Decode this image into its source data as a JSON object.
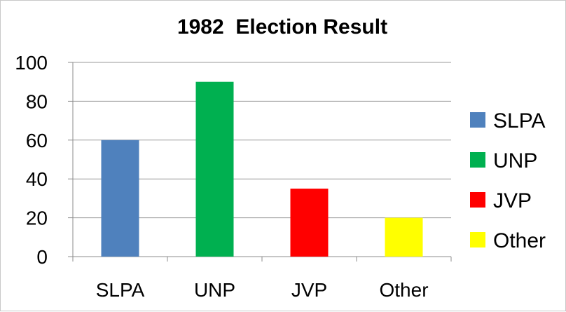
{
  "chart_data": {
    "type": "bar",
    "title": "1982  Election Result",
    "categories": [
      "SLPA",
      "UNP",
      "JVP",
      "Other"
    ],
    "values": [
      60,
      90,
      35,
      20
    ],
    "colors": [
      "#4f81bd",
      "#00b050",
      "#ff0000",
      "#ffff00"
    ],
    "xlabel": "",
    "ylabel": "",
    "ylim": [
      0,
      100
    ],
    "yticks": [
      0,
      20,
      40,
      60,
      80,
      100
    ],
    "grid": "horizontal",
    "legend": {
      "position": "right",
      "entries": [
        "SLPA",
        "UNP",
        "JVP",
        "Other"
      ]
    }
  }
}
